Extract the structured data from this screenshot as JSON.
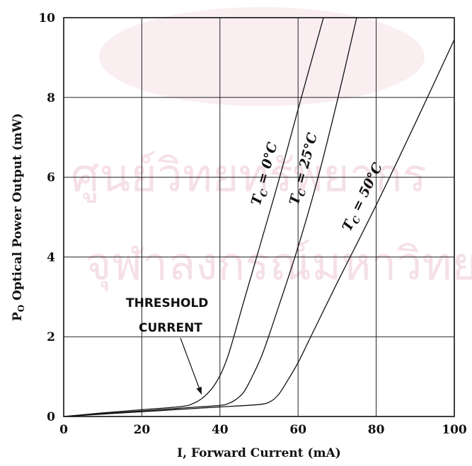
{
  "chart_data": {
    "type": "line",
    "title": "",
    "xlabel": "I, Forward Current  (mA)",
    "ylabel_main": "P",
    "ylabel_sub": "O",
    "ylabel_rest": " Optical Power  Output (mW)",
    "xlim": [
      0,
      100
    ],
    "ylim": [
      0,
      10
    ],
    "grid": true,
    "x_ticks": [
      0,
      20,
      40,
      60,
      80,
      100
    ],
    "y_ticks": [
      0,
      2,
      4,
      6,
      8,
      10
    ],
    "series": [
      {
        "name": "T_C = 0°C",
        "label_main": "T",
        "label_sub": "C",
        "label_rest": " = 0°C",
        "x": [
          0,
          10,
          20,
          30,
          33,
          36,
          39,
          42,
          46,
          50,
          55,
          60,
          66.5
        ],
        "y": [
          0,
          0.09,
          0.17,
          0.25,
          0.32,
          0.5,
          0.85,
          1.5,
          2.85,
          4.2,
          5.9,
          7.7,
          10
        ]
      },
      {
        "name": "T_C = 25°C",
        "label_main": "T",
        "label_sub": "C",
        "label_rest": " = 25°C",
        "x": [
          0,
          10,
          20,
          30,
          40,
          42,
          44,
          46,
          48,
          51,
          55,
          60,
          65,
          70,
          75
        ],
        "y": [
          0,
          0.07,
          0.14,
          0.21,
          0.28,
          0.32,
          0.42,
          0.6,
          0.95,
          1.6,
          2.75,
          4.25,
          5.95,
          7.9,
          10
        ]
      },
      {
        "name": "T_C = 50°C",
        "label_main": "T",
        "label_sub": "C",
        "label_rest": " = 50°C",
        "x": [
          0,
          10,
          20,
          30,
          40,
          50,
          53,
          55,
          57,
          60,
          63,
          70,
          80,
          90,
          100
        ],
        "y": [
          0,
          0.06,
          0.12,
          0.18,
          0.24,
          0.3,
          0.38,
          0.55,
          0.85,
          1.35,
          1.95,
          3.35,
          5.3,
          7.35,
          9.45
        ]
      }
    ],
    "annotation": {
      "line1": "THRESHOLD",
      "line2": "CURRENT",
      "arrow_target": [
        36,
        0.45
      ]
    }
  }
}
